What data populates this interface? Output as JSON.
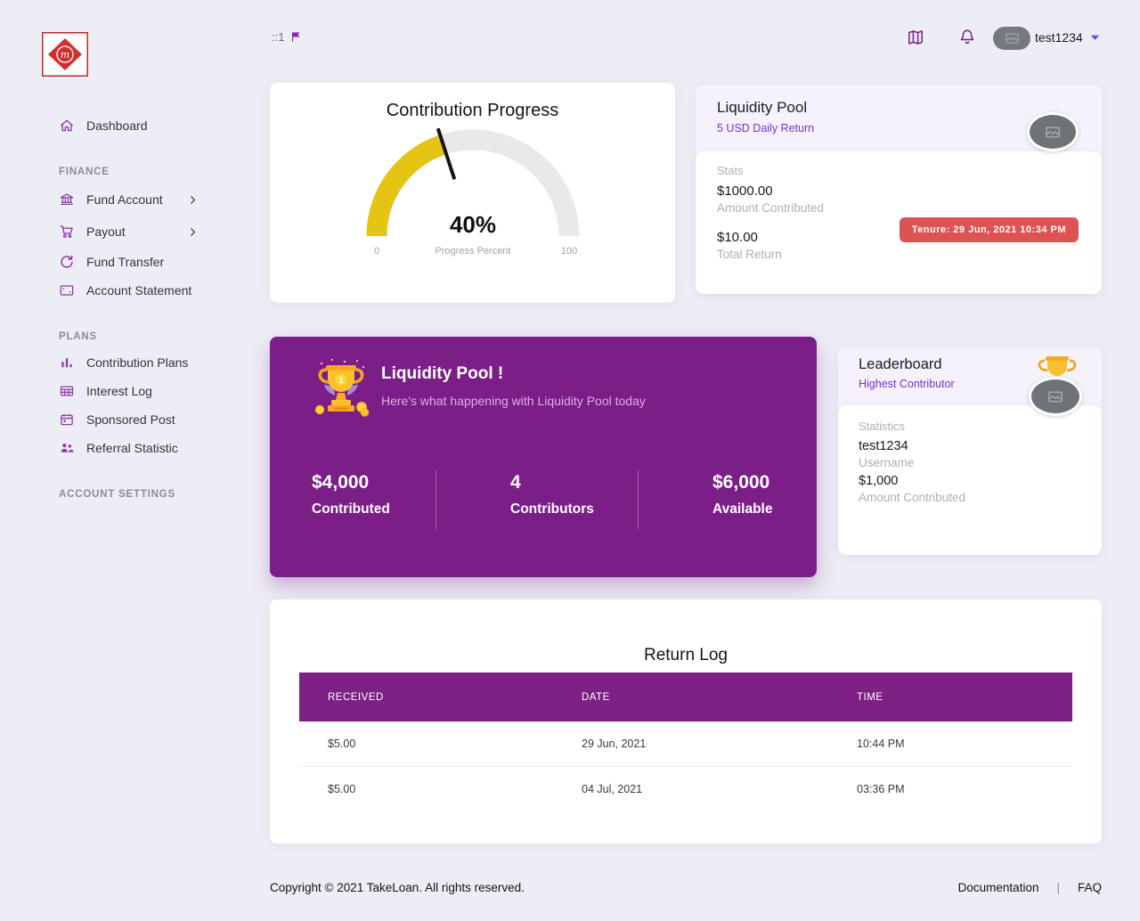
{
  "header": {
    "ip_label": "::1",
    "username": "test1234"
  },
  "sidebar": {
    "dashboard_label": "Dashboard",
    "sections": [
      {
        "title": "FINANCE",
        "items": [
          {
            "label": "Fund Account",
            "icon": "bank-icon",
            "has_submenu": true
          },
          {
            "label": "Payout",
            "icon": "cart-icon",
            "has_submenu": true
          },
          {
            "label": "Fund Transfer",
            "icon": "refresh-icon",
            "has_submenu": false
          },
          {
            "label": "Account Statement",
            "icon": "statement-icon",
            "has_submenu": false
          }
        ]
      },
      {
        "title": "PLANS",
        "items": [
          {
            "label": "Contribution Plans",
            "icon": "bar-chart-icon",
            "has_submenu": false
          },
          {
            "label": "Interest Log",
            "icon": "table-icon",
            "has_submenu": false
          },
          {
            "label": "Sponsored Post",
            "icon": "calendar-icon",
            "has_submenu": false
          },
          {
            "label": "Referral Statistic",
            "icon": "people-icon",
            "has_submenu": false
          }
        ]
      },
      {
        "title": "ACCOUNT SETTINGS",
        "items": []
      }
    ]
  },
  "gauge_card": {
    "title": "Contribution Progress",
    "percent": 40,
    "value_label": "40%",
    "min_label": "0",
    "max_label": "100",
    "axis_label": "Progress Percent"
  },
  "pool_card": {
    "title": "Liquidity Pool",
    "subtitle": "5 USD Daily Return",
    "stats_heading": "Stats",
    "amount_value": "$1000.00",
    "amount_label": "Amount Contributed",
    "return_value": "$10.00",
    "return_label": "Total Return",
    "tenure_badge": "Tenure: 29 Jun, 2021  10:34 PM"
  },
  "banner": {
    "title": "Liquidity Pool !",
    "subtitle": "Here's what happening with Liquidity Pool today",
    "stats": [
      {
        "value": "$4,000",
        "label": "Contributed"
      },
      {
        "value": "4",
        "label": "Contributors"
      },
      {
        "value": "$6,000",
        "label": "Available"
      }
    ]
  },
  "leaderboard": {
    "title": "Leaderboard",
    "subtitle": "Highest Contributor",
    "stats_heading": "Statistics",
    "username_value": "test1234",
    "username_label": "Username",
    "amount_value": "$1,000",
    "amount_label": "Amount Contributed"
  },
  "return_log": {
    "title": "Return Log",
    "columns": [
      "RECEIVED",
      "DATE",
      "TIME"
    ],
    "rows": [
      [
        "$5.00",
        "29 Jun, 2021",
        "10:44 PM"
      ],
      [
        "$5.00",
        "04 Jul, 2021",
        "03:36 PM"
      ]
    ]
  },
  "footer": {
    "copyright": "Copyright © 2021 TakeLoan. All rights reserved.",
    "doc_link": "Documentation",
    "separator": "|",
    "faq_link": "FAQ"
  },
  "colors": {
    "brand_purple": "#7B1E87",
    "accent_violet": "#7A30D6",
    "gauge_yellow": "#E5C514",
    "gauge_track": "#E9E9EC",
    "badge_red": "#DD5353",
    "page_bg": "#EDEDF5"
  }
}
